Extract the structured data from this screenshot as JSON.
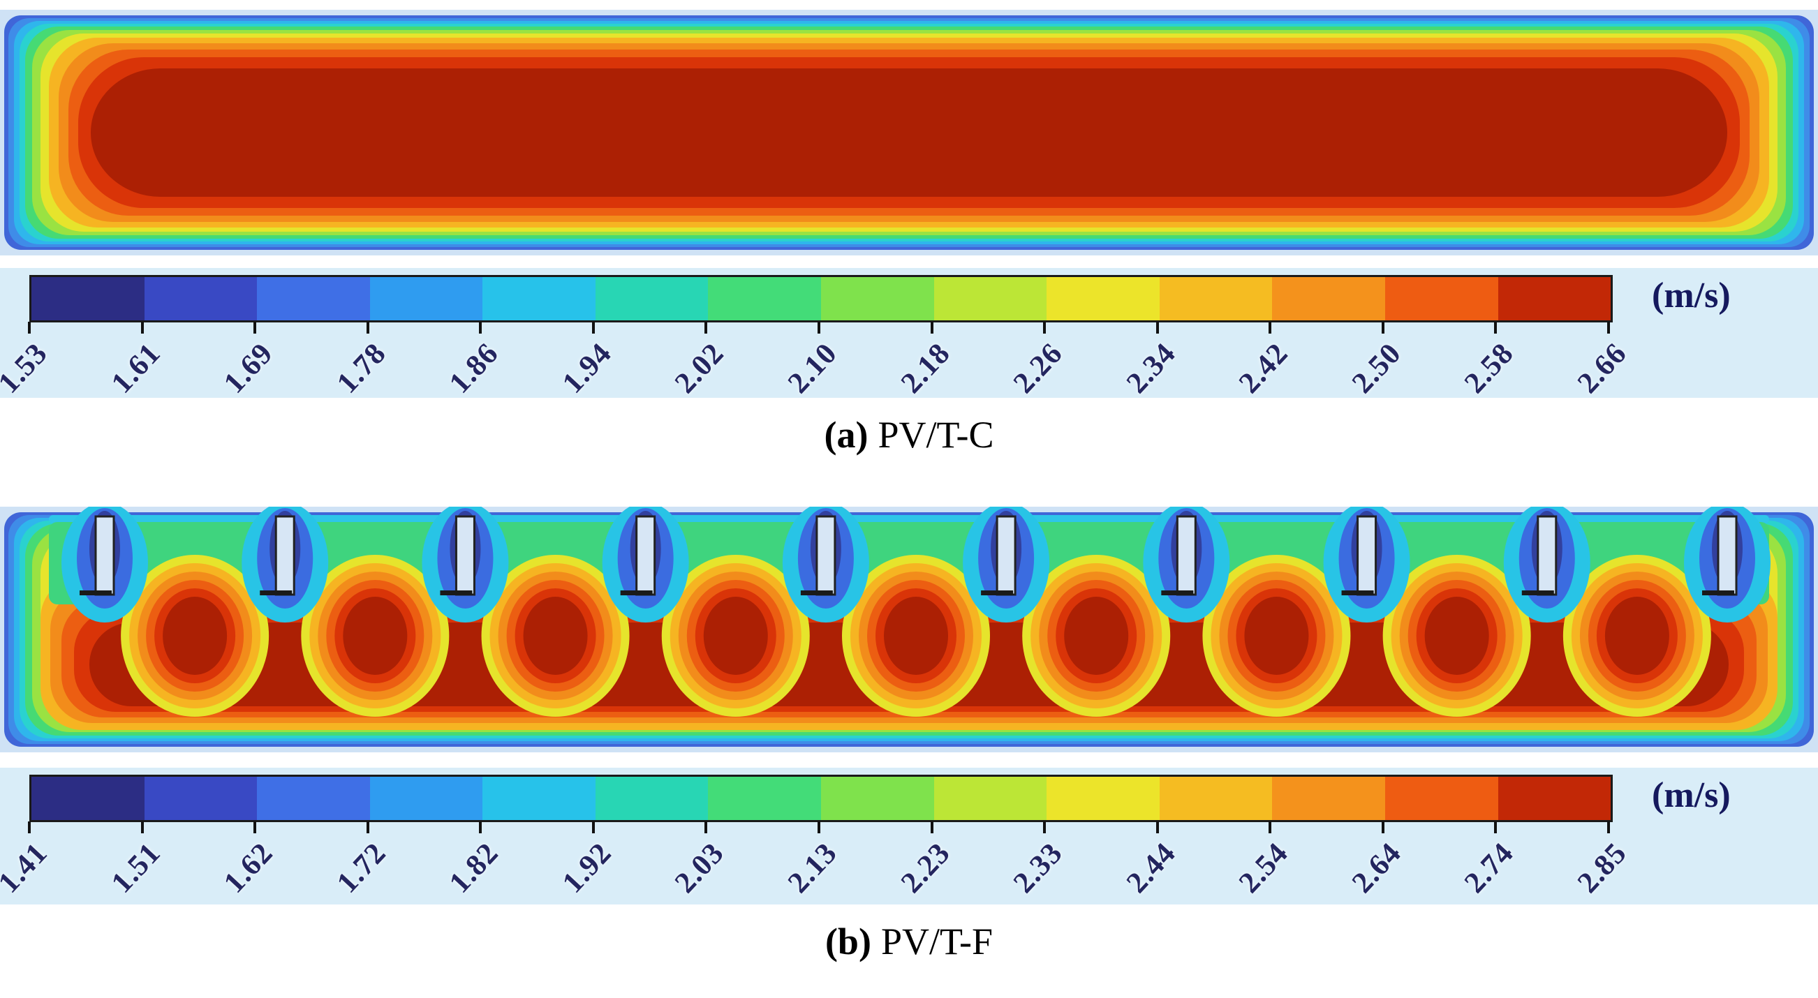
{
  "figure": {
    "panels": [
      {
        "id": "a",
        "caption_bold": "(a)",
        "caption_text": "PV/T-C",
        "unit": "(m/s)",
        "ticks": [
          "1.53",
          "1.61",
          "1.69",
          "1.78",
          "1.86",
          "1.94",
          "2.02",
          "2.10",
          "2.18",
          "2.26",
          "2.34",
          "2.42",
          "2.50",
          "2.58",
          "2.66"
        ],
        "segment_colors": [
          "#2c2d84",
          "#3949c4",
          "#3f6fe6",
          "#2f9cf0",
          "#27c2ea",
          "#28d6b4",
          "#43dc78",
          "#7fe24c",
          "#bce636",
          "#ece42a",
          "#f5bc22",
          "#f4921c",
          "#ee5c12",
          "#c22806"
        ]
      },
      {
        "id": "b",
        "caption_bold": "(b)",
        "caption_text": "PV/T-F",
        "unit": "(m/s)",
        "ticks": [
          "1.41",
          "1.51",
          "1.62",
          "1.72",
          "1.82",
          "1.92",
          "2.03",
          "2.13",
          "2.23",
          "2.33",
          "2.44",
          "2.54",
          "2.64",
          "2.74",
          "2.85"
        ],
        "segment_colors": [
          "#2c2d84",
          "#3949c4",
          "#3f6fe6",
          "#2f9cf0",
          "#27c2ea",
          "#28d6b4",
          "#43dc78",
          "#7fe24c",
          "#bce636",
          "#ece42a",
          "#f5bc22",
          "#f4921c",
          "#ee5c12",
          "#c22806"
        ]
      }
    ]
  },
  "chart_data": [
    {
      "type": "heatmap",
      "title": "(a) PV/T-C",
      "quantity": "velocity magnitude contour",
      "unit": "m/s",
      "colorbar_ticks": [
        1.53,
        1.61,
        1.69,
        1.78,
        1.86,
        1.94,
        2.02,
        2.1,
        2.18,
        2.26,
        2.34,
        2.42,
        2.5,
        2.58,
        2.66
      ],
      "value_range": [
        1.53,
        2.66
      ],
      "colorbar_colors": [
        "#2c2d84",
        "#3949c4",
        "#3f6fe6",
        "#2f9cf0",
        "#27c2ea",
        "#28d6b4",
        "#43dc78",
        "#7fe24c",
        "#bce636",
        "#ece42a",
        "#f5bc22",
        "#f4921c",
        "#ee5c12",
        "#c22806"
      ],
      "legend_position": "bottom horizontal colorbar",
      "description": "Smooth rectangular channel: large uniform dark-red high-velocity core (~2.66 m/s) filling the duct, surrounded by concentric rainbow bands of decreasing velocity toward the walls, blue/navy at the wall boundaries and corners"
    },
    {
      "type": "heatmap",
      "title": "(b) PV/T-F",
      "quantity": "velocity magnitude contour",
      "unit": "m/s",
      "colorbar_ticks": [
        1.41,
        1.51,
        1.62,
        1.72,
        1.82,
        1.92,
        2.03,
        2.13,
        2.23,
        2.33,
        2.44,
        2.54,
        2.64,
        2.74,
        2.85
      ],
      "value_range": [
        1.41,
        2.85
      ],
      "fin_count": 10,
      "colorbar_colors": [
        "#2c2d84",
        "#3949c4",
        "#3f6fe6",
        "#2f9cf0",
        "#27c2ea",
        "#28d6b4",
        "#43dc78",
        "#7fe24c",
        "#bce636",
        "#ece42a",
        "#f5bc22",
        "#f4921c",
        "#ee5c12",
        "#c22806"
      ],
      "legend_position": "bottom horizontal colorbar",
      "description": "Finned channel: ten fins protrude from the top wall; low-velocity blue/cyan/green wakes surround each fin while dark-red high-velocity mushroom-shaped plumes (~2.85 m/s) rise between fins above a continuous dark-red core"
    }
  ]
}
